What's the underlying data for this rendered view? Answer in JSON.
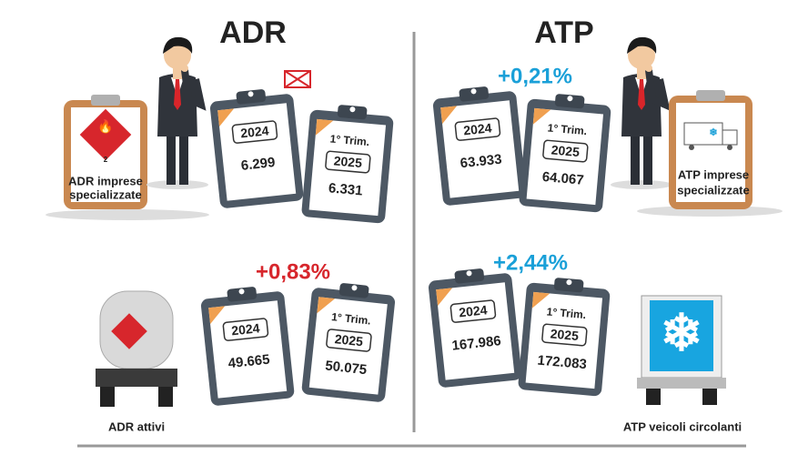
{
  "adr": {
    "title": "ADR",
    "imprese": {
      "label": [
        "ADR imprese",
        "specializzate"
      ],
      "hazard_class": "2",
      "prev": {
        "year": "2024",
        "value": "6.299"
      },
      "curr": {
        "period": "1° Trim.",
        "year": "2025",
        "value": "6.331"
      }
    },
    "attivi": {
      "label": "ADR attivi",
      "change": "+0,83%",
      "prev": {
        "year": "2024",
        "value": "49.665"
      },
      "curr": {
        "period": "1° Trim.",
        "year": "2025",
        "value": "50.075"
      }
    }
  },
  "atp": {
    "title": "ATP",
    "imprese": {
      "label": [
        "ATP imprese",
        "specializzate"
      ],
      "change": "+0,21%",
      "prev": {
        "year": "2024",
        "value": "63.933"
      },
      "curr": {
        "period": "1° Trim.",
        "year": "2025",
        "value": "64.067"
      }
    },
    "veicoli": {
      "label": "ATP veicoli circolanti",
      "change": "+2,44%",
      "prev": {
        "year": "2024",
        "value": "167.986"
      },
      "curr": {
        "period": "1° Trim.",
        "year": "2025",
        "value": "172.083"
      }
    }
  }
}
